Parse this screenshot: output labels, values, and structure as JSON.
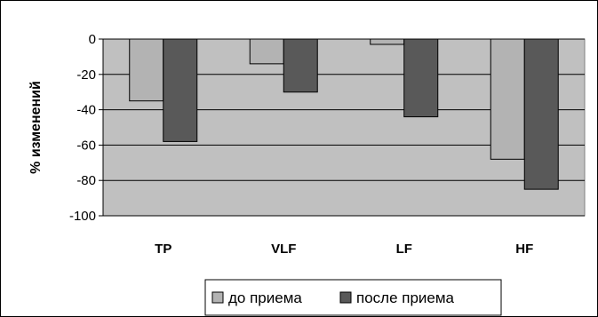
{
  "chart_data": {
    "type": "bar",
    "title": "",
    "xlabel": "",
    "ylabel": "% изменений",
    "categories": [
      "TP",
      "VLF",
      "LF",
      "HF"
    ],
    "series": [
      {
        "name": "до приема",
        "values": [
          -35,
          -14,
          -3,
          -68
        ],
        "color": "#b3b3b3"
      },
      {
        "name": "после приема",
        "values": [
          -58,
          -30,
          -44,
          -85
        ],
        "color": "#595959"
      }
    ],
    "ylim": [
      -100,
      0
    ],
    "yticks": [
      0,
      -20,
      -40,
      -60,
      -80,
      -100
    ],
    "grid": true,
    "plot_background": "#c0c0c0",
    "legend_position": "bottom"
  }
}
